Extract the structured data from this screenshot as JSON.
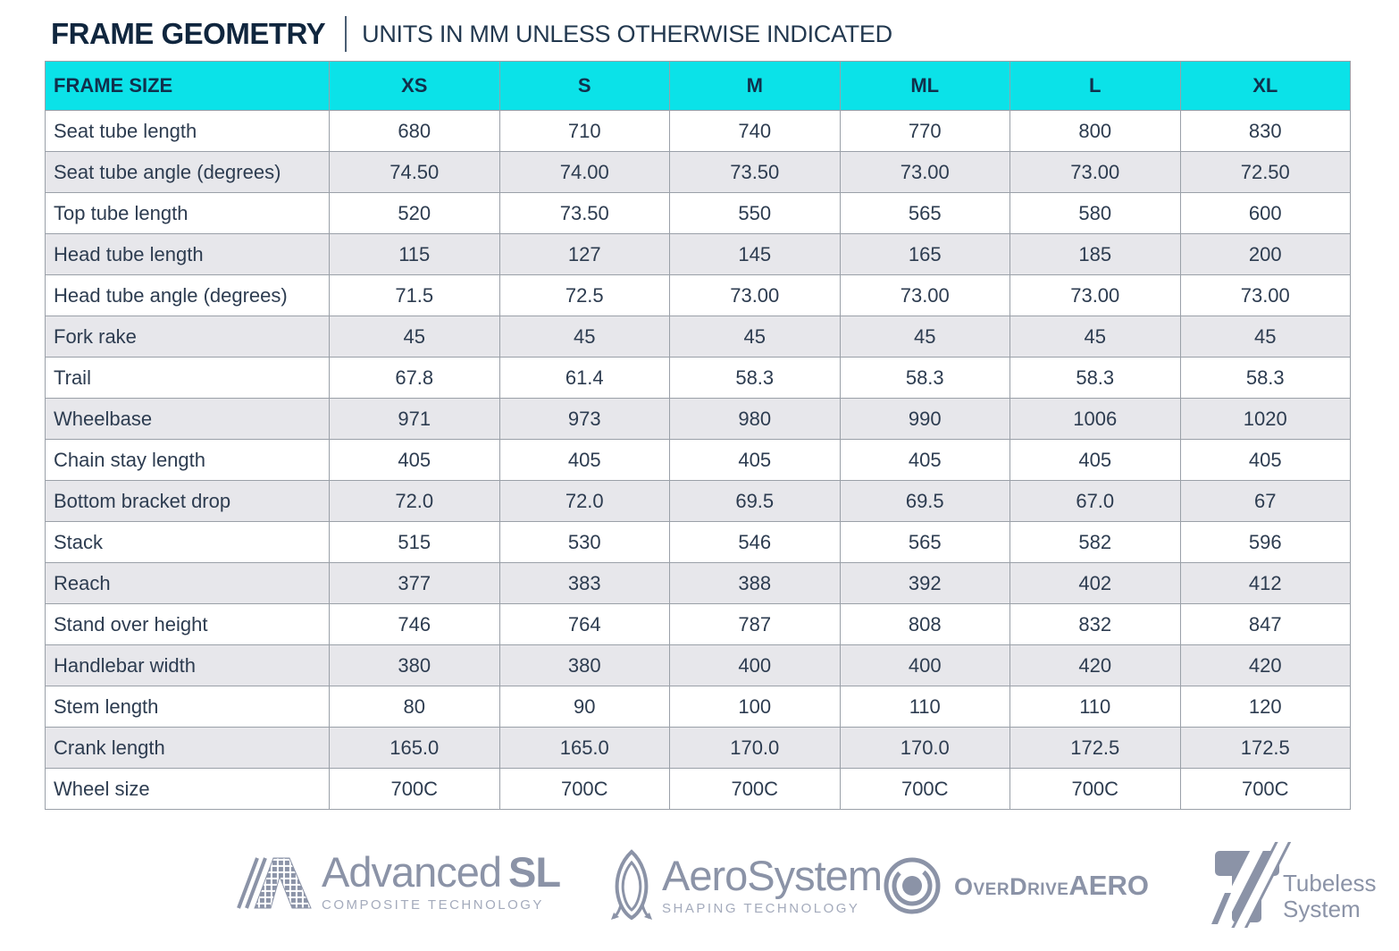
{
  "header": {
    "title": "FRAME GEOMETRY",
    "subtitle": "UNITS IN MM UNLESS OTHERWISE INDICATED"
  },
  "chart_data": {
    "type": "table",
    "title": "FRAME GEOMETRY",
    "units_note": "UNITS IN MM UNLESS OTHERWISE INDICATED",
    "columns": [
      "FRAME SIZE",
      "XS",
      "S",
      "M",
      "ML",
      "L",
      "XL"
    ],
    "rows": [
      {
        "label": "Seat tube length",
        "values": [
          "680",
          "710",
          "740",
          "770",
          "800",
          "830"
        ]
      },
      {
        "label": "Seat tube angle (degrees)",
        "values": [
          "74.50",
          "74.00",
          "73.50",
          "73.00",
          "73.00",
          "72.50"
        ]
      },
      {
        "label": "Top tube length",
        "values": [
          "520",
          "73.50",
          "550",
          "565",
          "580",
          "600"
        ]
      },
      {
        "label": "Head tube length",
        "values": [
          "115",
          "127",
          "145",
          "165",
          "185",
          "200"
        ]
      },
      {
        "label": "Head tube angle (degrees)",
        "values": [
          "71.5",
          "72.5",
          "73.00",
          "73.00",
          "73.00",
          "73.00"
        ]
      },
      {
        "label": "Fork rake",
        "values": [
          "45",
          "45",
          "45",
          "45",
          "45",
          "45"
        ]
      },
      {
        "label": "Trail",
        "values": [
          "67.8",
          "61.4",
          "58.3",
          "58.3",
          "58.3",
          "58.3"
        ]
      },
      {
        "label": "Wheelbase",
        "values": [
          "971",
          "973",
          "980",
          "990",
          "1006",
          "1020"
        ]
      },
      {
        "label": "Chain stay length",
        "values": [
          "405",
          "405",
          "405",
          "405",
          "405",
          "405"
        ]
      },
      {
        "label": "Bottom bracket drop",
        "values": [
          "72.0",
          "72.0",
          "69.5",
          "69.5",
          "67.0",
          "67"
        ]
      },
      {
        "label": "Stack",
        "values": [
          "515",
          "530",
          "546",
          "565",
          "582",
          "596"
        ]
      },
      {
        "label": "Reach",
        "values": [
          "377",
          "383",
          "388",
          "392",
          "402",
          "412"
        ]
      },
      {
        "label": "Stand over height",
        "values": [
          "746",
          "764",
          "787",
          "808",
          "832",
          "847"
        ]
      },
      {
        "label": "Handlebar width",
        "values": [
          "380",
          "380",
          "400",
          "400",
          "420",
          "420"
        ]
      },
      {
        "label": "Stem length",
        "values": [
          "80",
          "90",
          "100",
          "110",
          "110",
          "120"
        ]
      },
      {
        "label": "Crank length",
        "values": [
          "165.0",
          "165.0",
          "170.0",
          "170.0",
          "172.5",
          "172.5"
        ]
      },
      {
        "label": "Wheel size",
        "values": [
          "700C",
          "700C",
          "700C",
          "700C",
          "700C",
          "700C"
        ]
      }
    ]
  },
  "footer": {
    "logos": {
      "advanced": {
        "brand": "Advanced",
        "suffix": "SL",
        "tagline": "COMPOSITE TECHNOLOGY"
      },
      "aerosystem": {
        "brand": "AeroSystem",
        "tagline": "SHAPING TECHNOLOGY"
      },
      "overdrive": {
        "brand": "OverDrive",
        "suffix": "AERO"
      },
      "tubeless": {
        "line1": "Tubeless",
        "line2": "System"
      }
    }
  },
  "colors": {
    "header_bg": "#0be2e8",
    "row_alt_bg": "#e7e7eb",
    "cell_border": "#9aa0a8",
    "cell_text": "#2d3c50",
    "title_text": "#10263e",
    "logo_gray": "#8b93a7"
  }
}
